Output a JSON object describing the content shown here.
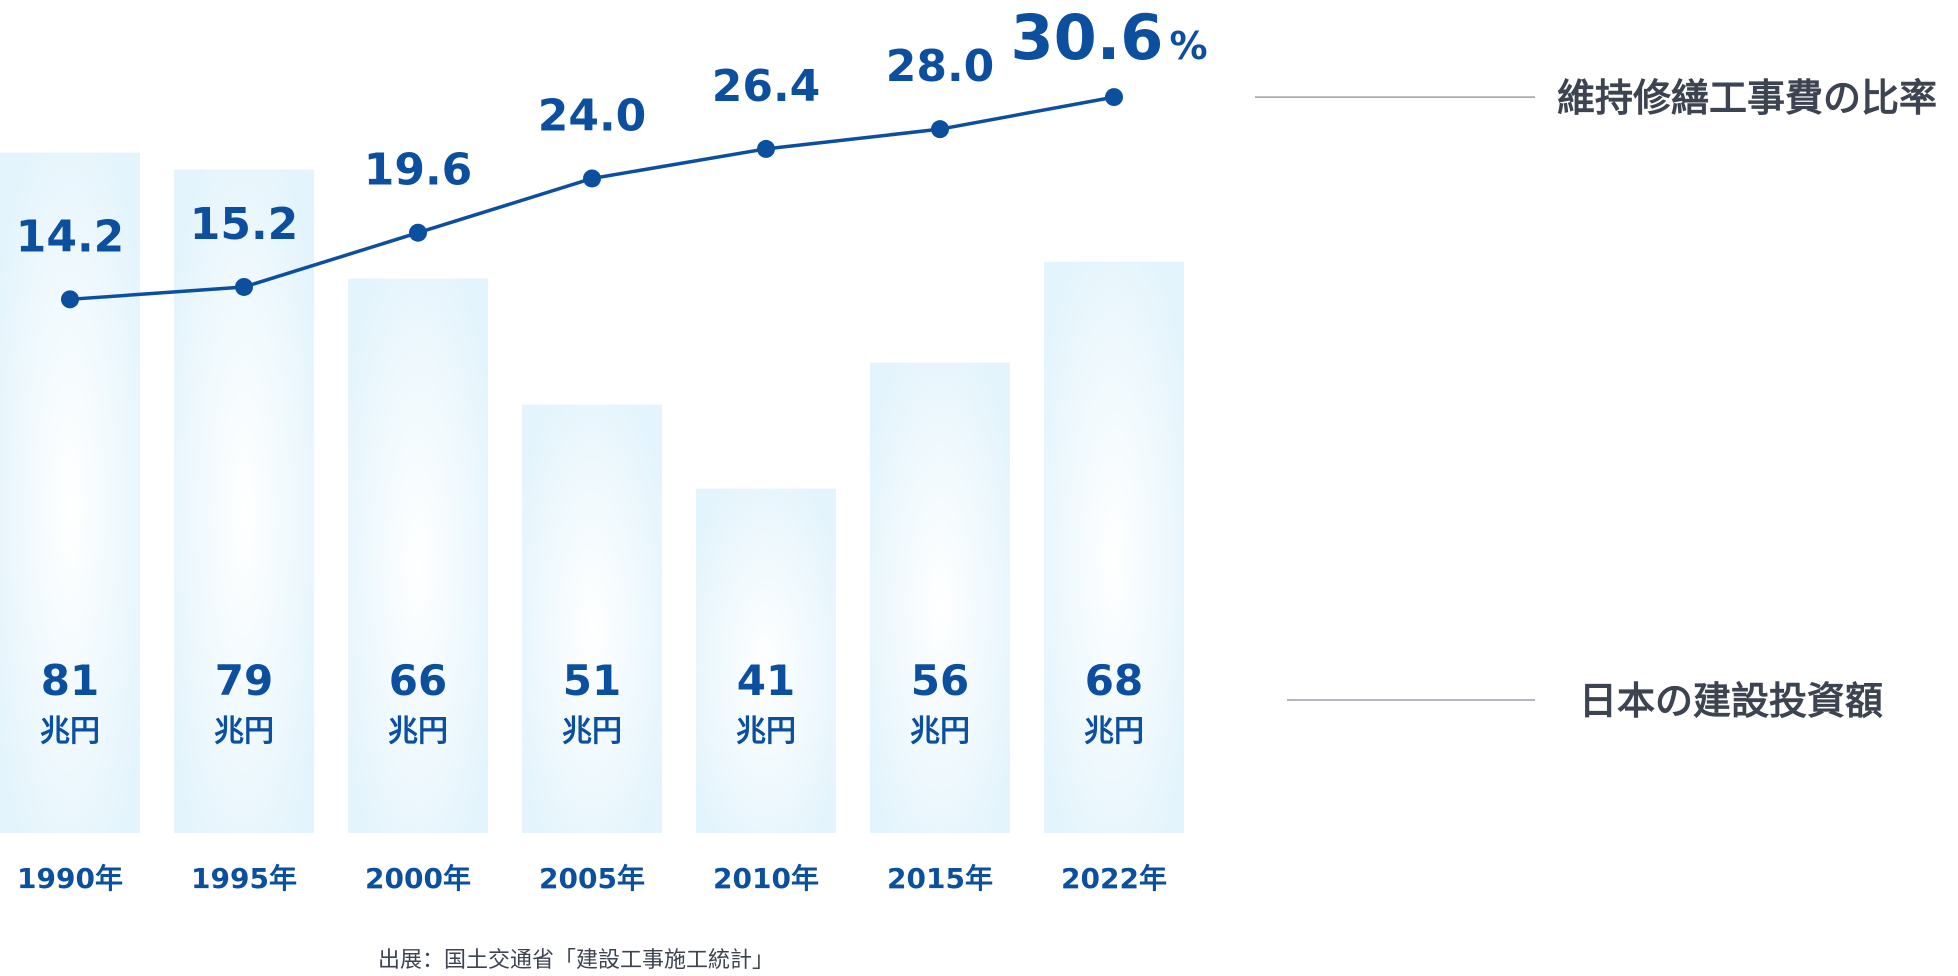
{
  "chart_data": {
    "type": "bar",
    "categories": [
      "1990年",
      "1995年",
      "2000年",
      "2005年",
      "2010年",
      "2015年",
      "2022年"
    ],
    "series": [
      {
        "name": "日本の建設投資額",
        "type": "bar",
        "values": [
          81,
          79,
          66,
          51,
          41,
          56,
          68
        ],
        "value_labels": [
          "81",
          "79",
          "66",
          "51",
          "41",
          "56",
          "68"
        ],
        "unit": "兆円"
      },
      {
        "name": "維持修繕工事費の比率",
        "type": "line",
        "values": [
          14.2,
          15.2,
          19.6,
          24.0,
          26.4,
          28.0,
          30.6
        ],
        "value_labels": [
          "14.2",
          "15.2",
          "19.6",
          "24.0",
          "26.4",
          "28.0",
          "30.6"
        ],
        "unit": "%"
      }
    ],
    "title": "",
    "xlabel": "",
    "ylabel": "",
    "source": "出展：国土交通省「建設工事施工統計」",
    "grid": false,
    "legend": "right",
    "colors": {
      "line": "#0d4f9f",
      "label": "#0d4f9f",
      "bar_edge": "#e3f4fc",
      "bar_center": "#ffffff",
      "legend_text": "#3d4451",
      "legend_rule": "#9aa0a8",
      "axis_text": "#0d4f9f",
      "source_text": "#3d4451"
    }
  }
}
